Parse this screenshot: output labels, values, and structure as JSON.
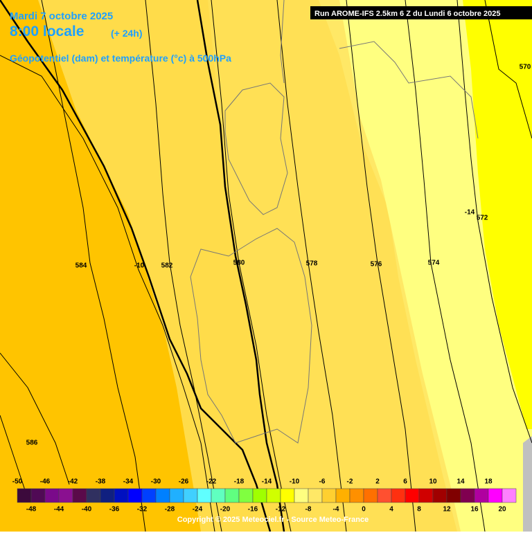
{
  "header": {
    "date": "Mardi 7 octobre 2025",
    "time": "8:00 locale",
    "lead": "(+ 24h)",
    "field": "Géopotentiel (dam) et température (°c) à 500hPa",
    "run": "Run AROME-IFS 2.5km 6 Z du Lundi 6 octobre 2025"
  },
  "contour_labels": [
    "584",
    "-10",
    "582",
    "580",
    "578",
    "576",
    "574",
    "-14",
    "572",
    "570",
    "586"
  ],
  "legend": {
    "top_labels": [
      -50,
      -46,
      -42,
      -38,
      -34,
      -30,
      -26,
      -22,
      -18,
      -14,
      -10,
      -6,
      -2,
      2,
      6,
      10,
      14,
      18
    ],
    "bottom_labels": [
      -48,
      -44,
      -40,
      -36,
      -32,
      -28,
      -24,
      -20,
      -16,
      -12,
      -8,
      -4,
      0,
      4,
      8,
      12,
      16,
      20
    ],
    "colors": [
      "#3c0a3c",
      "#500a55",
      "#7a0a8a",
      "#8a1090",
      "#5a0a4a",
      "#303060",
      "#102080",
      "#0010c0",
      "#0000ff",
      "#0040ff",
      "#0080ff",
      "#20b0ff",
      "#40d0ff",
      "#60ffff",
      "#60ffc0",
      "#60ff80",
      "#80ff40",
      "#a0ff00",
      "#d0ff00",
      "#ffff00",
      "#ffff80",
      "#ffe866",
      "#ffd030",
      "#ffb000",
      "#ff9000",
      "#ff7000",
      "#ff5030",
      "#ff3010",
      "#ff0000",
      "#d00000",
      "#a00000",
      "#800000",
      "#800050",
      "#b000a0",
      "#ff00ff",
      "#ff80ff"
    ]
  },
  "footer": "Copyright © 2025 Meteociel.fr - Source Meteo-France"
}
